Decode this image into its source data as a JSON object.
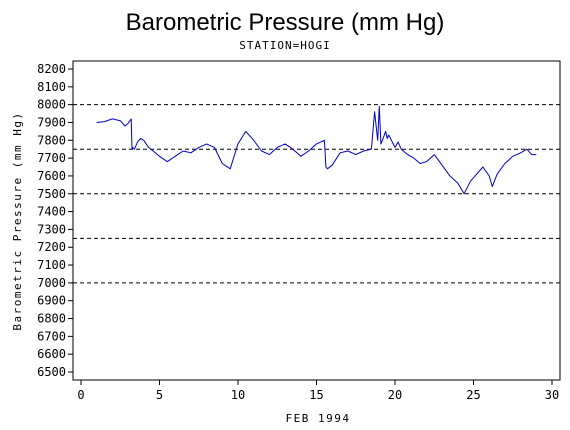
{
  "chart_data": {
    "type": "line",
    "title": "Barometric Pressure (mm Hg)",
    "subtitle": "STATION=HOGI",
    "xlabel": "FEB 1994",
    "ylabel": "Barometric Pressure (mm Hg)",
    "xlim": [
      0,
      30
    ],
    "ylim": [
      6500,
      8200
    ],
    "x_ticks": [
      0,
      5,
      10,
      15,
      20,
      25,
      30
    ],
    "y_ticks": [
      6500,
      6600,
      6700,
      6800,
      6900,
      7000,
      7100,
      7200,
      7300,
      7400,
      7500,
      7600,
      7700,
      7800,
      7900,
      8000,
      8100,
      8200
    ],
    "reference_lines": [
      8000,
      7750,
      7500,
      7250,
      7000
    ],
    "line_color": "#0000cc",
    "series": [
      {
        "name": "",
        "x": [
          1.0,
          1.5,
          2.0,
          2.5,
          2.8,
          3.0,
          3.2,
          3.25,
          3.3,
          3.4,
          3.6,
          3.8,
          4.0,
          4.3,
          4.6,
          5.0,
          5.5,
          6.0,
          6.5,
          7.0,
          7.5,
          8.0,
          8.5,
          9.0,
          9.5,
          10.0,
          10.5,
          11.0,
          11.5,
          12.0,
          12.5,
          13.0,
          13.5,
          14.0,
          14.5,
          15.0,
          15.5,
          15.6,
          15.7,
          16.0,
          16.5,
          17.0,
          17.5,
          18.0,
          18.5,
          18.7,
          18.9,
          19.0,
          19.1,
          19.2,
          19.4,
          19.5,
          19.6,
          20.0,
          20.2,
          20.4,
          20.8,
          21.2,
          21.6,
          22.0,
          22.5,
          23.0,
          23.5,
          24.0,
          24.4,
          24.8,
          25.2,
          25.6,
          26.0,
          26.2,
          26.5,
          27.0,
          27.5,
          28.0,
          28.4,
          28.7,
          29.0
        ],
        "y": [
          7900,
          7905,
          7920,
          7910,
          7880,
          7895,
          7920,
          7750,
          7760,
          7750,
          7790,
          7810,
          7800,
          7760,
          7740,
          7710,
          7680,
          7710,
          7740,
          7730,
          7760,
          7780,
          7760,
          7670,
          7640,
          7780,
          7850,
          7800,
          7740,
          7720,
          7760,
          7780,
          7750,
          7710,
          7740,
          7780,
          7800,
          7650,
          7640,
          7660,
          7730,
          7740,
          7720,
          7740,
          7750,
          7960,
          7800,
          7990,
          7780,
          7800,
          7850,
          7810,
          7830,
          7760,
          7790,
          7750,
          7720,
          7700,
          7670,
          7680,
          7720,
          7660,
          7600,
          7560,
          7500,
          7570,
          7610,
          7650,
          7600,
          7540,
          7610,
          7670,
          7710,
          7730,
          7750,
          7720,
          7720
        ]
      }
    ]
  }
}
